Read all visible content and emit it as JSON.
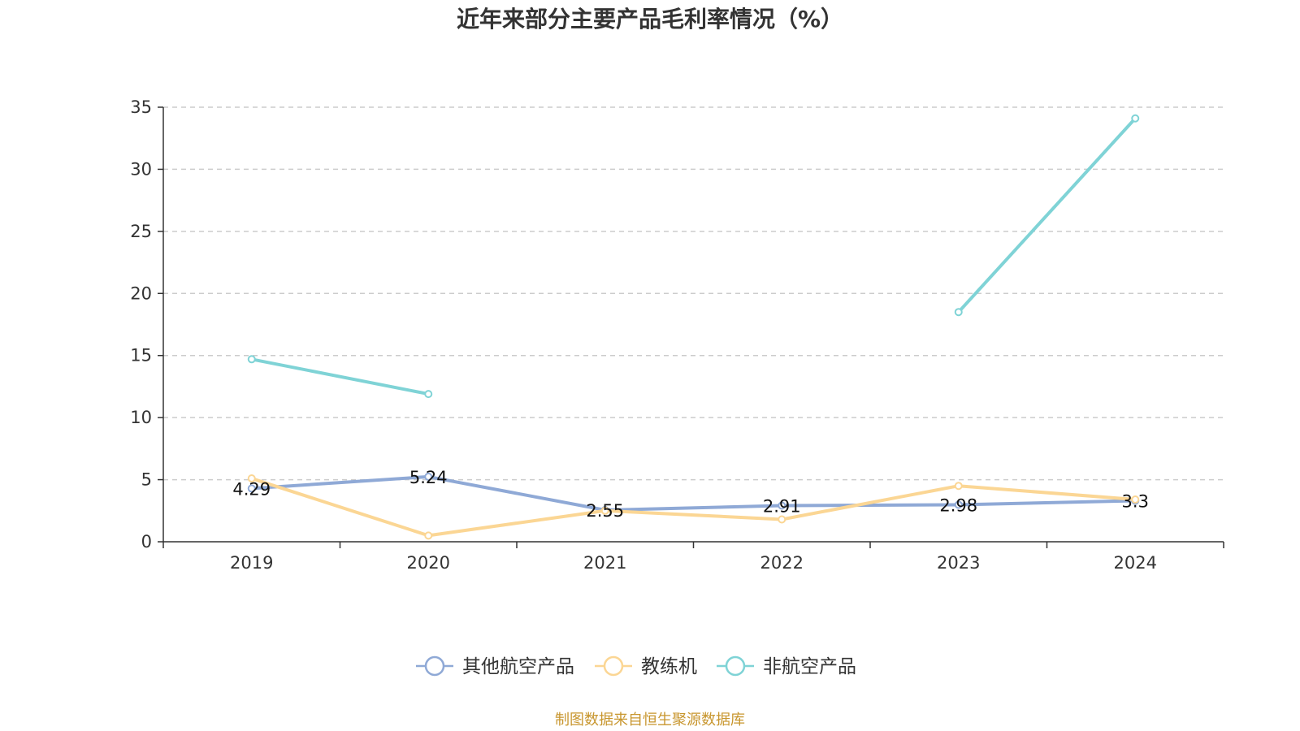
{
  "chart_data": {
    "type": "line",
    "title": "近年来部分主要产品毛利率情况（%）",
    "xlabel": "",
    "ylabel": "",
    "categories": [
      "2019",
      "2020",
      "2021",
      "2022",
      "2023",
      "2024"
    ],
    "ylim": [
      0,
      35
    ],
    "yticks": [
      0,
      5,
      10,
      15,
      20,
      25,
      30,
      35
    ],
    "grid": true,
    "legend_position": "bottom",
    "series": [
      {
        "name": "其他航空产品",
        "color": "#8fa9d6",
        "values": [
          4.29,
          5.24,
          2.55,
          2.91,
          2.98,
          3.3
        ],
        "labels": [
          "4.29",
          "5.24",
          "2.55",
          "2.91",
          "2.98",
          "3.3"
        ]
      },
      {
        "name": "教练机",
        "color": "#fbd694",
        "values": [
          5.1,
          0.5,
          2.5,
          1.8,
          4.5,
          3.4
        ],
        "labels": null
      },
      {
        "name": "非航空产品",
        "color": "#7fd3d6",
        "values": [
          14.7,
          11.9,
          null,
          null,
          18.5,
          34.1
        ],
        "labels": null
      }
    ]
  },
  "source": "制图数据来自恒生聚源数据库"
}
